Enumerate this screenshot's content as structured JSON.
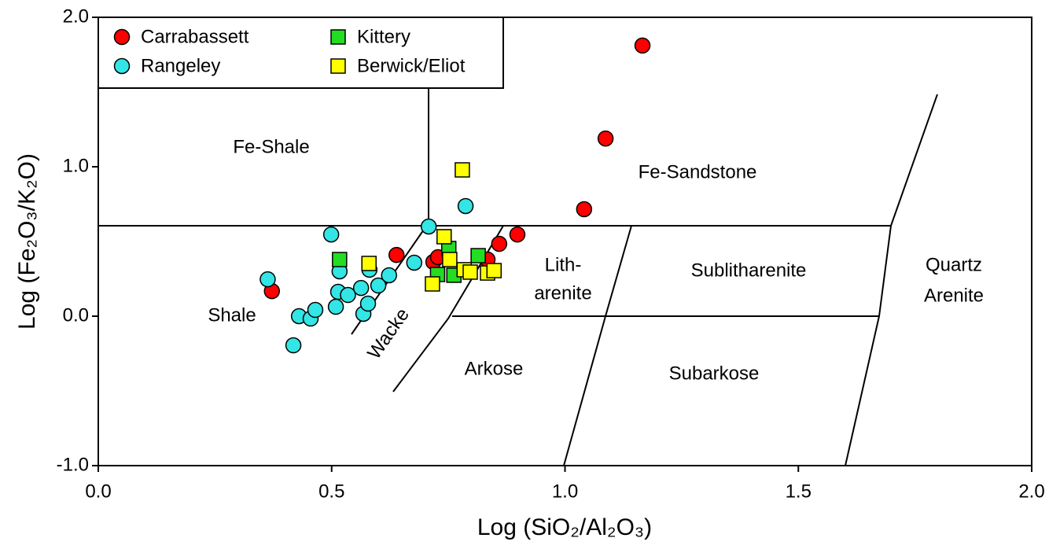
{
  "chart_data": {
    "type": "scatter",
    "x_label": "Log (SiO₂/Al₂O₃)",
    "y_label": "Log (Fe₂O₃/K₂O)",
    "xlim": [
      0,
      2
    ],
    "ylim": [
      -1,
      2
    ],
    "xticks": [
      {
        "value": 0,
        "label": "0.0"
      },
      0.5,
      {
        "value": 1,
        "label": "1.0"
      },
      1.5,
      {
        "value": 2,
        "label": "2.0"
      }
    ],
    "yticks": [
      {
        "value": -1,
        "label": "-1.0"
      },
      {
        "value": 0,
        "label": "0.0"
      },
      {
        "value": 1,
        "label": "1.0"
      },
      {
        "value": 2,
        "label": "2.0"
      }
    ],
    "legend": "upper left",
    "annotations": [
      "Fe-Shale",
      "Fe-Sandstone",
      "Shale",
      "Wacke",
      "Lith-",
      "arenite",
      "Sublitharenite",
      "Quartz",
      "Arenite",
      "Arkose",
      "Subarkose"
    ],
    "series": [
      {
        "name": "Carrabassett",
        "color": "#ff0000",
        "marker": "circle",
        "x": [
          0.372,
          0.639,
          0.718,
          0.728,
          0.834,
          0.859,
          0.898,
          1.041,
          1.087,
          1.166
        ],
        "y": [
          0.168,
          0.41,
          0.363,
          0.395,
          0.379,
          0.484,
          0.547,
          0.716,
          1.189,
          1.811
        ]
      },
      {
        "name": "Rangeley",
        "color": "#33e5e5",
        "marker": "circle",
        "x": [
          0.363,
          0.499,
          0.418,
          0.43,
          0.455,
          0.465,
          0.509,
          0.514,
          0.517,
          0.535,
          0.563,
          0.568,
          0.578,
          0.581,
          0.6,
          0.623,
          0.677,
          0.708,
          0.787
        ],
        "y": [
          0.247,
          0.547,
          -0.195,
          0.0,
          -0.016,
          0.042,
          0.063,
          0.163,
          0.3,
          0.142,
          0.189,
          0.016,
          0.084,
          0.311,
          0.205,
          0.274,
          0.358,
          0.6,
          0.737
        ]
      },
      {
        "name": "Kittery",
        "color": "#22dd22",
        "marker": "square",
        "x": [
          0.517,
          0.751,
          0.727,
          0.762,
          0.814
        ],
        "y": [
          0.379,
          0.453,
          0.279,
          0.274,
          0.405
        ]
      },
      {
        "name": "Berwick/Eliot",
        "color": "#ffff00",
        "marker": "square",
        "x": [
          0.78,
          0.58,
          0.741,
          0.753,
          0.716,
          0.784,
          0.797,
          0.834,
          0.848
        ],
        "y": [
          0.979,
          0.353,
          0.532,
          0.379,
          0.216,
          0.311,
          0.295,
          0.289,
          0.305
        ]
      }
    ]
  }
}
